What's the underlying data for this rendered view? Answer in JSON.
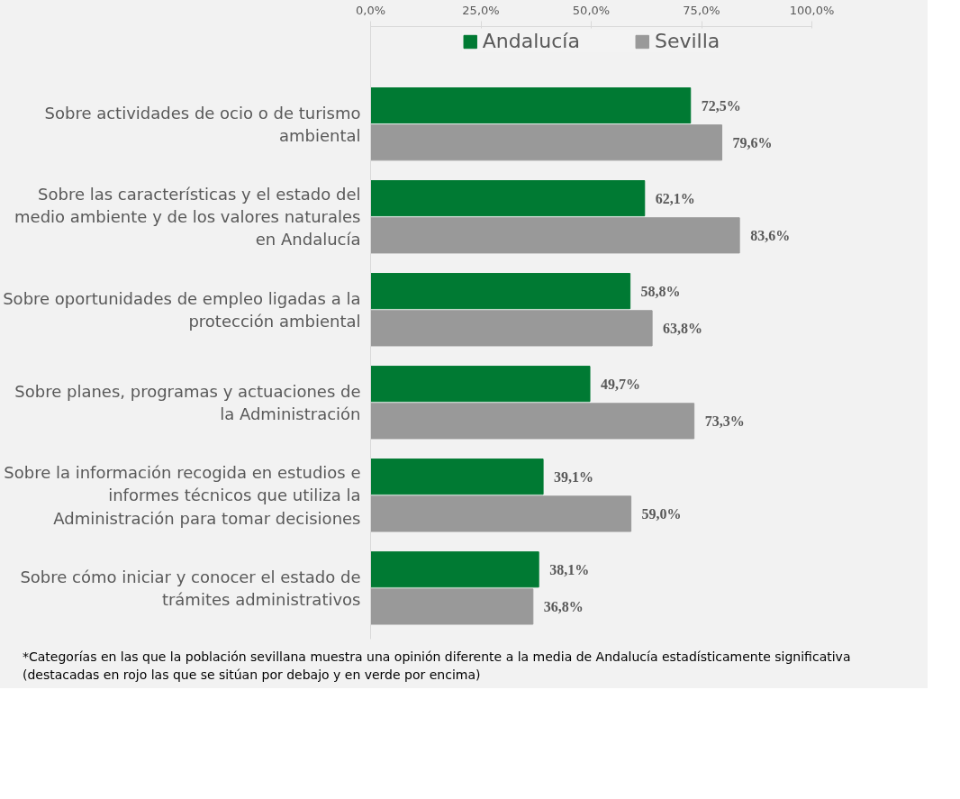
{
  "chart_data": {
    "type": "bar",
    "orientation": "horizontal",
    "categories": [
      "Sobre actividades de ocio o de turismo\nambiental",
      "Sobre las características y el estado del\nmedio ambiente y de los valores naturales\nen Andalucía",
      "Sobre oportunidades de empleo ligadas a la\nprotección ambiental",
      "Sobre planes, programas y actuaciones de\nla Administración",
      "Sobre la información recogida en estudios e\ninformes técnicos que utiliza la\nAdministración para tomar decisiones",
      "Sobre cómo iniciar y conocer el estado de\ntrámites administrativos"
    ],
    "series": [
      {
        "name": "Andalucía",
        "color": "#007a33",
        "values": [
          72.5,
          62.1,
          58.8,
          49.7,
          39.1,
          38.1
        ],
        "value_labels": [
          "72,5%",
          "62,1%",
          "58,8%",
          "49,7%",
          "39,1%",
          "38,1%"
        ]
      },
      {
        "name": "Sevilla",
        "color": "#999999",
        "values": [
          79.6,
          83.6,
          63.8,
          73.3,
          59.0,
          36.8
        ],
        "value_labels": [
          "79,6%",
          "83,6%",
          "63,8%",
          "73,3%",
          "59,0%",
          "36,8%"
        ]
      }
    ],
    "xlim": [
      0,
      100
    ],
    "xticks": [
      {
        "value": 0,
        "label": "0,0%"
      },
      {
        "value": 25,
        "label": "25,0%"
      },
      {
        "value": 50,
        "label": "50,0%"
      },
      {
        "value": 75,
        "label": "75,0%"
      },
      {
        "value": 100,
        "label": "100,0%"
      }
    ],
    "grid": false,
    "legend": "top",
    "annotations": [
      "*Categorías en las que la población sevillana muestra una opinión diferente a la media de Andalucía estadísticamente significativa (destacadas en rojo las que se sitúan por debajo y en verde por encima)"
    ]
  }
}
